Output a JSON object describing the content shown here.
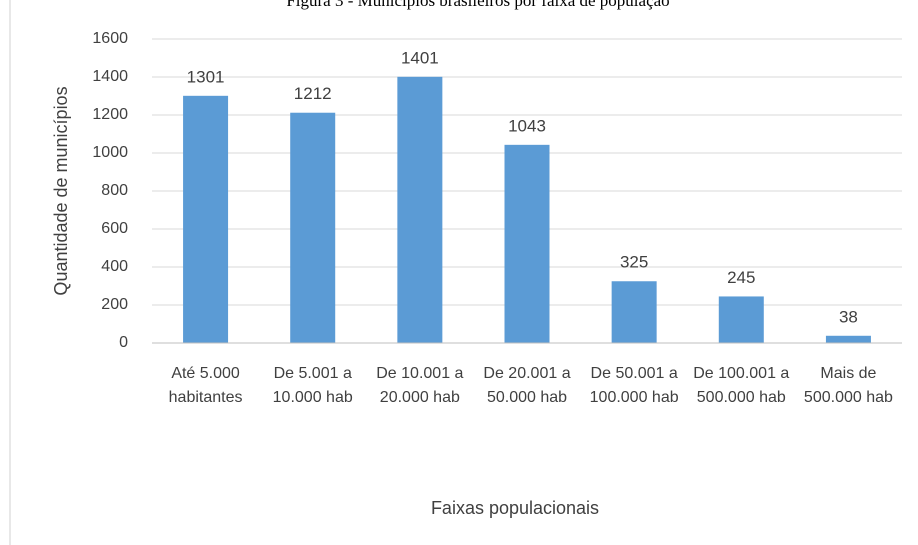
{
  "chart_data": {
    "type": "bar",
    "title": "Figura 3 - Municípios brasileiros por faixa de população",
    "categories": [
      "Até 5.000 habitantes",
      "De 5.001 a 10.000 hab",
      "De 10.001 a 20.000 hab",
      "De 20.001 a 50.000 hab",
      "De 50.001 a 100.000 hab",
      "De 100.001 a 500.000 hab",
      "Mais de 500.000 hab"
    ],
    "values": [
      1301,
      1212,
      1401,
      1043,
      325,
      245,
      38
    ],
    "color": "#5b9bd5",
    "xlabel": "Faixas populacionais",
    "ylabel": "Quantidade de municípios",
    "ylim": [
      0,
      1600
    ],
    "yticks": [
      0,
      200,
      400,
      600,
      800,
      1000,
      1200,
      1400,
      1600
    ],
    "grid": true
  }
}
